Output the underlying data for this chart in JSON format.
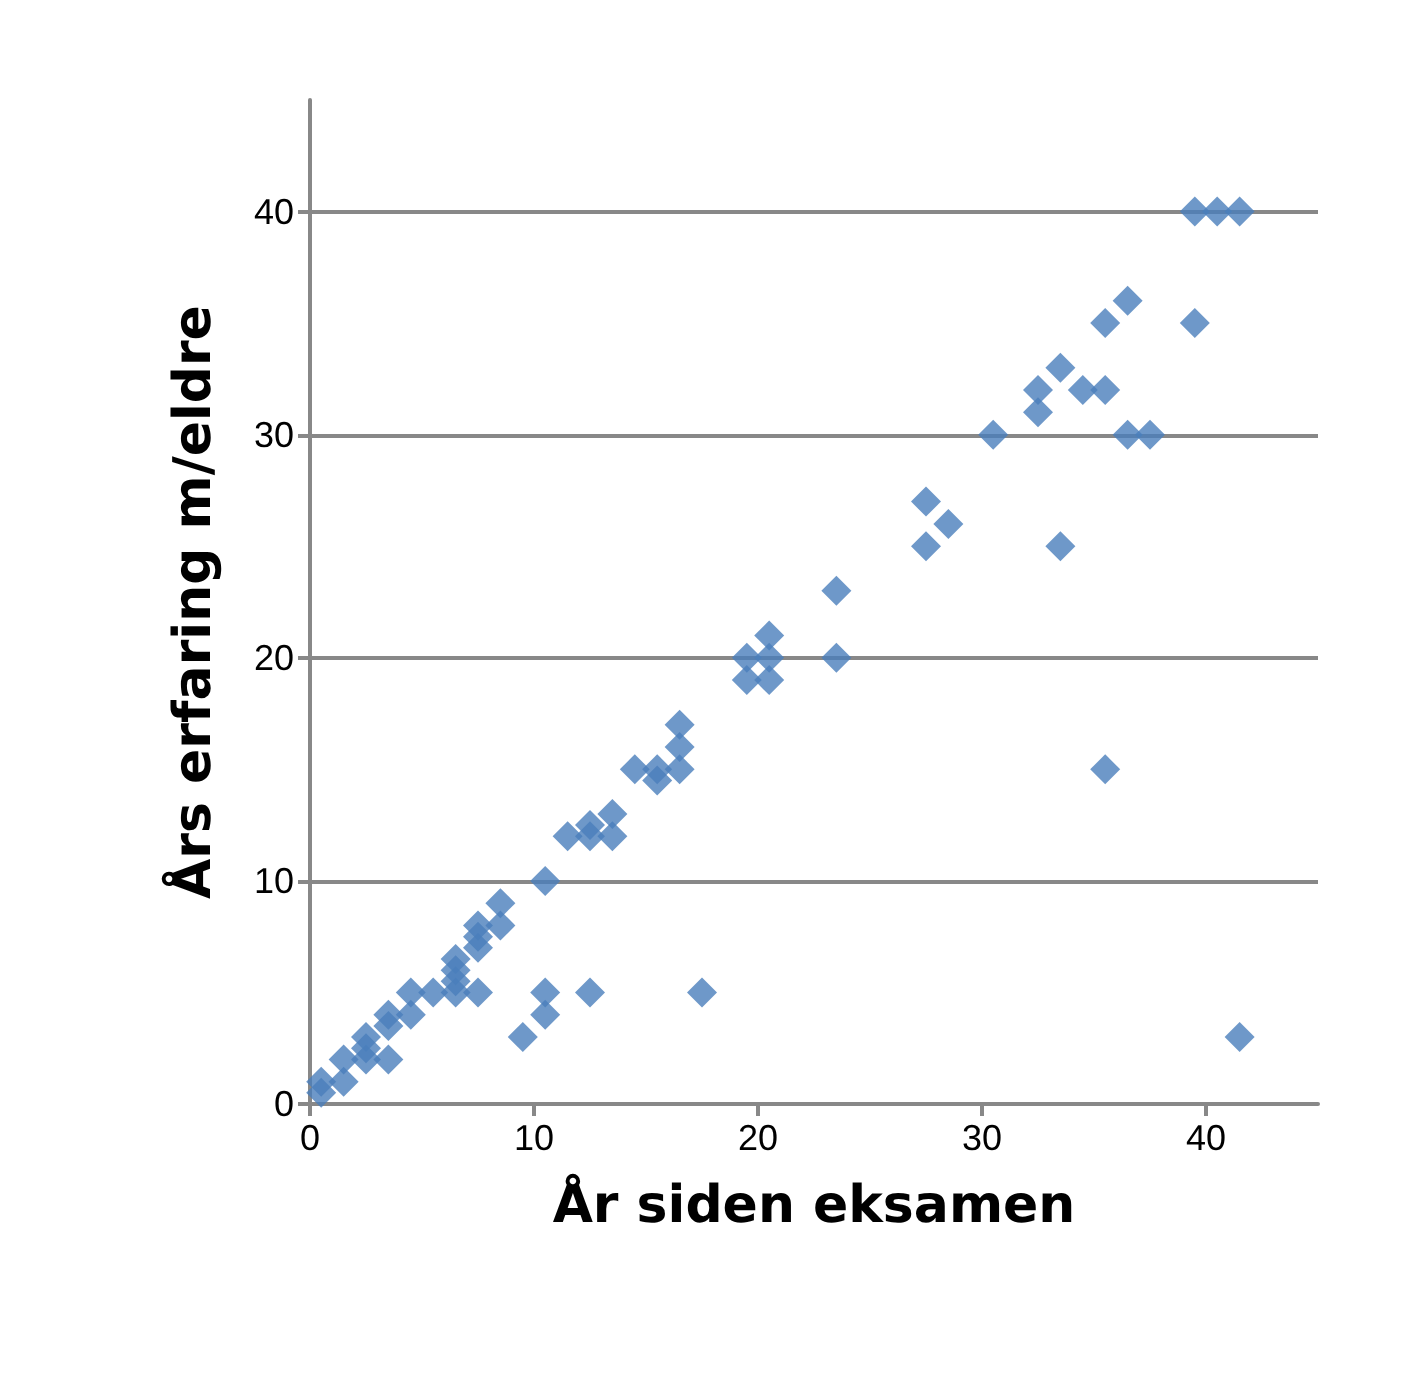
{
  "chart_data": {
    "type": "scatter",
    "xlabel": "År siden eksamen",
    "ylabel": "Års erfaring m/eldre",
    "x": [
      0.5,
      0.5,
      1.5,
      1.5,
      2.5,
      2.5,
      2.5,
      3.5,
      3.5,
      3.5,
      4.5,
      4.5,
      5.5,
      6.5,
      6.5,
      6.5,
      6.5,
      7.5,
      7.5,
      7.5,
      7.5,
      8.5,
      8.5,
      9.5,
      10.5,
      10.5,
      10.5,
      11.5,
      12.5,
      12.5,
      12.5,
      13.5,
      13.5,
      14.5,
      15.5,
      15.5,
      16.5,
      16.5,
      16.5,
      17.5,
      19.5,
      19.5,
      20.5,
      20.5,
      20.5,
      23.5,
      23.5,
      27.5,
      27.5,
      28.5,
      30.5,
      32.5,
      32.5,
      33.5,
      33.5,
      34.5,
      35.5,
      35.5,
      35.5,
      36.5,
      36.5,
      37.5,
      39.5,
      39.5,
      40.5,
      41.5,
      41.5
    ],
    "values": [
      0.5,
      1,
      1,
      2,
      2,
      3,
      2.5,
      2,
      3.5,
      4,
      4,
      5,
      5,
      5,
      5.5,
      6,
      6.5,
      5,
      7,
      7.5,
      8,
      8,
      9,
      3,
      4,
      5,
      10,
      12,
      5,
      12,
      12.5,
      12,
      13,
      15,
      14.5,
      15,
      15,
      16,
      17,
      5,
      19,
      20,
      19,
      20,
      21,
      20,
      23,
      25,
      27,
      26,
      30,
      31,
      32,
      25,
      33,
      32,
      15,
      32,
      35,
      30,
      36,
      30,
      35,
      40,
      40,
      40,
      3
    ],
    "color": "#4a7ebb",
    "marker": "diamond",
    "xlim": [
      0,
      45
    ],
    "ylim": [
      0,
      45
    ],
    "xticks": [
      0,
      10,
      20,
      30,
      40
    ],
    "yticks": [
      0,
      10,
      20,
      30,
      40
    ],
    "grid": "y"
  }
}
